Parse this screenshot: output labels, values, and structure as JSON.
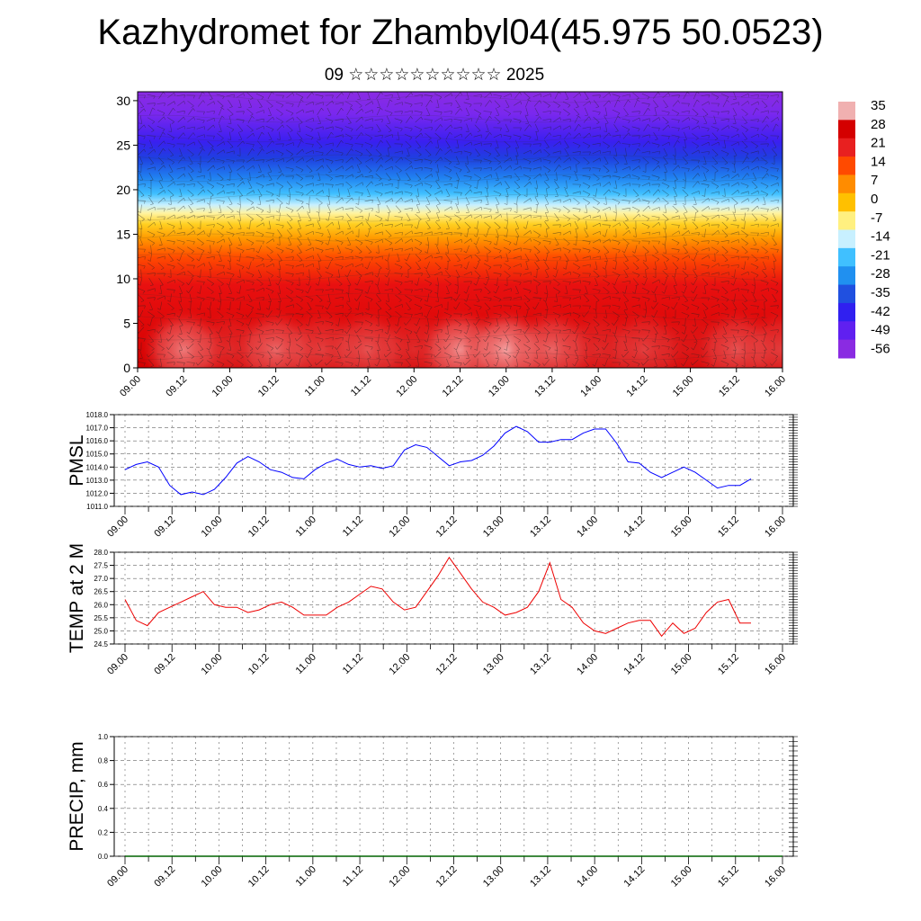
{
  "title": "Kazhydromet for Zhambyl04(45.975 50.0523)",
  "subtitle": "09 ☆☆☆☆☆☆☆☆☆☆ 2025",
  "time_ticks": [
    "09.00",
    "09.12",
    "10.00",
    "10.12",
    "11.00",
    "11.12",
    "12.00",
    "12.12",
    "13.00",
    "13.12",
    "14.00",
    "14.12",
    "15.00",
    "15.12",
    "16.00"
  ],
  "chart_data": [
    {
      "type": "heatmap",
      "title": "",
      "xlabel": "",
      "ylabel": "",
      "ylim": [
        0,
        31
      ],
      "y_ticks": [
        0,
        5,
        10,
        15,
        20,
        25,
        30
      ],
      "colorbar_labels": [
        "35",
        "28",
        "21",
        "14",
        "7",
        "0",
        "-7",
        "-14",
        "-21",
        "-28",
        "-35",
        "-42",
        "-49",
        "-56"
      ],
      "colorbar_colors": [
        "#f0b0b0",
        "#d40000",
        "#e82020",
        "#ff4a00",
        "#ff8c00",
        "#ffc000",
        "#fff080",
        "#c8f0ff",
        "#40c0ff",
        "#2090f0",
        "#2050e0",
        "#3020f0",
        "#6020f0",
        "#8a2be2"
      ],
      "surface_temperature_x": [
        0,
        12,
        24,
        36,
        48,
        60,
        72,
        84,
        96,
        108,
        120,
        132,
        144,
        156,
        168
      ],
      "surface_temperature": [
        27,
        33,
        29,
        32,
        30,
        31,
        29,
        34,
        35,
        32,
        29,
        30,
        28,
        31,
        30
      ]
    },
    {
      "type": "line",
      "ylabel": "PMSL",
      "ylim": [
        1011.0,
        1018.0
      ],
      "y_ticks": [
        "1011.0",
        "1012.0",
        "1013.0",
        "1014.0",
        "1015.0",
        "1016.0",
        "1017.0",
        "1018.0"
      ],
      "color": "#0000ff",
      "values": [
        1013.8,
        1014.2,
        1014.4,
        1014.0,
        1012.6,
        1011.9,
        1012.1,
        1011.9,
        1012.3,
        1013.2,
        1014.3,
        1014.8,
        1014.4,
        1013.8,
        1013.6,
        1013.2,
        1013.1,
        1013.8,
        1014.3,
        1014.6,
        1014.2,
        1014.0,
        1014.1,
        1013.9,
        1014.1,
        1015.3,
        1015.7,
        1015.5,
        1014.8,
        1014.1,
        1014.4,
        1014.5,
        1014.9,
        1015.6,
        1016.6,
        1017.1,
        1016.7,
        1015.9,
        1015.9,
        1016.1,
        1016.1,
        1016.6,
        1016.9,
        1016.9,
        1015.8,
        1014.4,
        1014.3,
        1013.6,
        1013.2,
        1013.6,
        1014.0,
        1013.6,
        1013.0,
        1012.4,
        1012.6,
        1012.6,
        1013.1
      ]
    },
    {
      "type": "line",
      "ylabel": "TEMP at 2 M",
      "ylim": [
        24.5,
        28.0
      ],
      "y_ticks": [
        "24.5",
        "25.0",
        "25.5",
        "26.0",
        "26.5",
        "27.0",
        "27.5",
        "28.0"
      ],
      "color": "#ee0000",
      "values": [
        26.2,
        25.4,
        25.2,
        25.7,
        25.9,
        26.1,
        26.3,
        26.5,
        26.0,
        25.9,
        25.9,
        25.7,
        25.8,
        26.0,
        26.1,
        25.9,
        25.6,
        25.6,
        25.6,
        25.9,
        26.1,
        26.4,
        26.7,
        26.6,
        26.1,
        25.8,
        25.9,
        26.5,
        27.1,
        27.8,
        27.2,
        26.6,
        26.1,
        25.9,
        25.6,
        25.7,
        25.9,
        26.5,
        27.6,
        26.2,
        25.9,
        25.3,
        25.0,
        24.9,
        25.1,
        25.3,
        25.4,
        25.4,
        24.8,
        25.3,
        24.9,
        25.1,
        25.7,
        26.1,
        26.2,
        25.3,
        25.3
      ]
    },
    {
      "type": "line",
      "ylabel": "PRECIP, mm",
      "ylim": [
        0.0,
        1.0
      ],
      "y_ticks": [
        "0.0",
        "0.2",
        "0.4",
        "0.6",
        "0.8",
        "1.0"
      ],
      "color": "#006400",
      "values": [
        0,
        0,
        0,
        0,
        0,
        0,
        0,
        0,
        0,
        0,
        0,
        0,
        0,
        0,
        0,
        0,
        0,
        0,
        0,
        0,
        0,
        0,
        0,
        0,
        0,
        0,
        0,
        0,
        0,
        0,
        0,
        0,
        0,
        0,
        0,
        0,
        0,
        0,
        0,
        0,
        0,
        0,
        0,
        0,
        0,
        0,
        0,
        0,
        0,
        0,
        0,
        0,
        0,
        0,
        0,
        0,
        0,
        0
      ]
    }
  ]
}
